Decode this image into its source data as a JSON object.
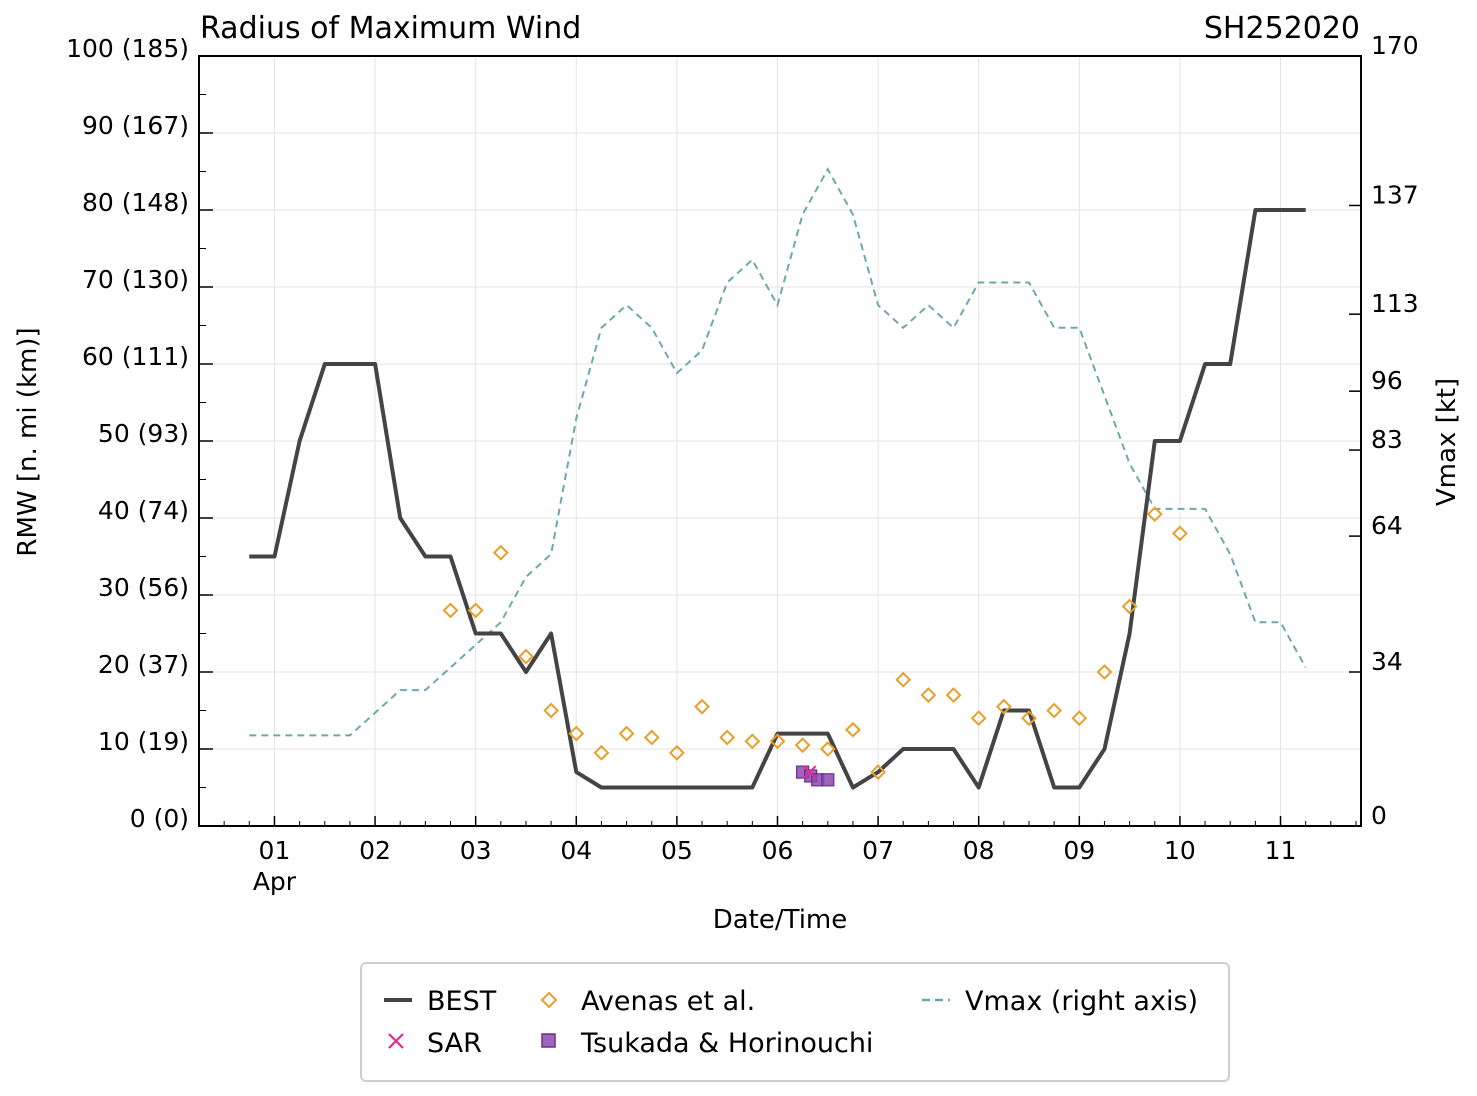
{
  "chart_data": {
    "type": "line",
    "title": "Radius of Maximum Wind",
    "storm_id": "SH252020",
    "xlabel": "Date/Time",
    "ylabel": "RMW [n. mi (km)]",
    "ylabel_right": "Vmax [kt]",
    "x_unit": "days since 31 Mar 00Z",
    "xlim": [
      0.25,
      11.8
    ],
    "ylim": [
      0,
      100
    ],
    "ylim_right": [
      0,
      170
    ],
    "x_ticks": [
      {
        "x": 1,
        "label": "01",
        "sub": "Apr"
      },
      {
        "x": 2,
        "label": "02"
      },
      {
        "x": 3,
        "label": "03"
      },
      {
        "x": 4,
        "label": "04"
      },
      {
        "x": 5,
        "label": "05"
      },
      {
        "x": 6,
        "label": "06"
      },
      {
        "x": 7,
        "label": "07"
      },
      {
        "x": 8,
        "label": "08"
      },
      {
        "x": 9,
        "label": "09"
      },
      {
        "x": 10,
        "label": "10"
      },
      {
        "x": 11,
        "label": "11"
      }
    ],
    "y_ticks": [
      {
        "y": 0,
        "label": "0 (0)"
      },
      {
        "y": 10,
        "label": "10 (19)"
      },
      {
        "y": 20,
        "label": "20 (37)"
      },
      {
        "y": 30,
        "label": "30 (56)"
      },
      {
        "y": 40,
        "label": "40 (74)"
      },
      {
        "y": 50,
        "label": "50 (93)"
      },
      {
        "y": 60,
        "label": "60 (111)"
      },
      {
        "y": 70,
        "label": "70 (130)"
      },
      {
        "y": 80,
        "label": "80 (148)"
      },
      {
        "y": 90,
        "label": "90 (167)"
      },
      {
        "y": 100,
        "label": "100 (185)"
      }
    ],
    "y_right_ticks": [
      {
        "v": 0,
        "label": "0"
      },
      {
        "v": 34,
        "label": "34"
      },
      {
        "v": 64,
        "label": "64"
      },
      {
        "v": 83,
        "label": "83"
      },
      {
        "v": 96,
        "label": "96"
      },
      {
        "v": 113,
        "label": "113"
      },
      {
        "v": 137,
        "label": "137"
      },
      {
        "v": 170,
        "label": "170"
      }
    ],
    "series": [
      {
        "name": "BEST",
        "style": "line",
        "color": "#444444",
        "axis": "left",
        "points": [
          [
            0.75,
            35
          ],
          [
            1.0,
            35
          ],
          [
            1.25,
            50
          ],
          [
            1.5,
            60
          ],
          [
            1.75,
            60
          ],
          [
            2.0,
            60
          ],
          [
            2.25,
            40
          ],
          [
            2.5,
            35
          ],
          [
            2.75,
            35
          ],
          [
            3.0,
            25
          ],
          [
            3.25,
            25
          ],
          [
            3.5,
            20
          ],
          [
            3.75,
            25
          ],
          [
            4.0,
            7
          ],
          [
            4.25,
            5
          ],
          [
            4.5,
            5
          ],
          [
            4.75,
            5
          ],
          [
            5.0,
            5
          ],
          [
            5.25,
            5
          ],
          [
            5.5,
            5
          ],
          [
            5.75,
            5
          ],
          [
            6.0,
            12
          ],
          [
            6.25,
            12
          ],
          [
            6.5,
            12
          ],
          [
            6.75,
            5
          ],
          [
            7.0,
            7
          ],
          [
            7.25,
            10
          ],
          [
            7.5,
            10
          ],
          [
            7.75,
            10
          ],
          [
            8.0,
            5
          ],
          [
            8.25,
            15
          ],
          [
            8.5,
            15
          ],
          [
            8.75,
            5
          ],
          [
            9.0,
            5
          ],
          [
            9.25,
            10
          ],
          [
            9.5,
            25
          ],
          [
            9.75,
            50
          ],
          [
            10.0,
            50
          ],
          [
            10.25,
            60
          ],
          [
            10.5,
            60
          ],
          [
            10.75,
            80
          ],
          [
            11.0,
            80
          ],
          [
            11.25,
            80
          ]
        ]
      },
      {
        "name": "Avenas et al.",
        "style": "diamond",
        "color": "#E69F2B",
        "axis": "left",
        "points": [
          [
            2.75,
            28
          ],
          [
            3.0,
            28
          ],
          [
            3.25,
            35.5
          ],
          [
            3.5,
            22
          ],
          [
            3.75,
            15
          ],
          [
            4.0,
            12
          ],
          [
            4.25,
            9.5
          ],
          [
            4.5,
            12
          ],
          [
            4.75,
            11.5
          ],
          [
            5.0,
            9.5
          ],
          [
            5.25,
            15.5
          ],
          [
            5.5,
            11.5
          ],
          [
            5.75,
            11
          ],
          [
            6.0,
            11
          ],
          [
            6.25,
            10.5
          ],
          [
            6.5,
            10
          ],
          [
            6.75,
            12.5
          ],
          [
            7.0,
            7
          ],
          [
            7.25,
            19
          ],
          [
            7.5,
            17
          ],
          [
            7.75,
            17
          ],
          [
            8.0,
            14
          ],
          [
            8.25,
            15.5
          ],
          [
            8.5,
            14
          ],
          [
            8.75,
            15
          ],
          [
            9.0,
            14
          ],
          [
            9.25,
            20
          ],
          [
            9.5,
            28.5
          ],
          [
            9.75,
            40.5
          ],
          [
            10.0,
            38
          ]
        ]
      },
      {
        "name": "SAR",
        "style": "x",
        "color": "#E8298E",
        "axis": "left",
        "points": [
          [
            6.32,
            7
          ]
        ]
      },
      {
        "name": "Tsukada & Horinouchi",
        "style": "square",
        "color": "#8E4AAE",
        "axis": "left",
        "points": [
          [
            6.25,
            7
          ],
          [
            6.33,
            6.5
          ],
          [
            6.4,
            6
          ],
          [
            6.5,
            6
          ]
        ]
      },
      {
        "name": "Vmax (right axis)",
        "style": "dashed",
        "color": "#6FA8AB",
        "axis": "right",
        "points": [
          [
            0.75,
            20
          ],
          [
            1.0,
            20
          ],
          [
            1.25,
            20
          ],
          [
            1.5,
            20
          ],
          [
            1.75,
            20
          ],
          [
            2.0,
            25
          ],
          [
            2.25,
            30
          ],
          [
            2.5,
            30
          ],
          [
            2.75,
            35
          ],
          [
            3.0,
            40
          ],
          [
            3.25,
            45
          ],
          [
            3.5,
            55
          ],
          [
            3.75,
            60
          ],
          [
            4.0,
            90
          ],
          [
            4.25,
            110
          ],
          [
            4.5,
            115
          ],
          [
            4.75,
            110
          ],
          [
            5.0,
            100
          ],
          [
            5.25,
            105
          ],
          [
            5.5,
            120
          ],
          [
            5.75,
            125
          ],
          [
            6.0,
            115
          ],
          [
            6.25,
            135
          ],
          [
            6.5,
            145
          ],
          [
            6.75,
            135
          ],
          [
            7.0,
            115
          ],
          [
            7.25,
            110
          ],
          [
            7.5,
            115
          ],
          [
            7.75,
            110
          ],
          [
            8.0,
            120
          ],
          [
            8.25,
            120
          ],
          [
            8.5,
            120
          ],
          [
            8.75,
            110
          ],
          [
            9.0,
            110
          ],
          [
            9.25,
            95
          ],
          [
            9.5,
            80
          ],
          [
            9.75,
            70
          ],
          [
            10.0,
            70
          ],
          [
            10.25,
            70
          ],
          [
            10.5,
            60
          ],
          [
            10.75,
            45
          ],
          [
            11.0,
            45
          ],
          [
            11.25,
            35
          ]
        ]
      }
    ],
    "legend": {
      "placement": "bottom-center",
      "entries": [
        {
          "label": "BEST",
          "style": "line",
          "color": "#444444"
        },
        {
          "label": "Avenas et al.",
          "style": "diamond",
          "color": "#E69F2B"
        },
        {
          "label": "Vmax (right axis)",
          "style": "dashed",
          "color": "#6FA8AB"
        },
        {
          "label": "SAR",
          "style": "x",
          "color": "#E8298E"
        },
        {
          "label": "Tsukada & Horinouchi",
          "style": "square",
          "color": "#8E4AAE"
        }
      ]
    },
    "grid": true
  }
}
